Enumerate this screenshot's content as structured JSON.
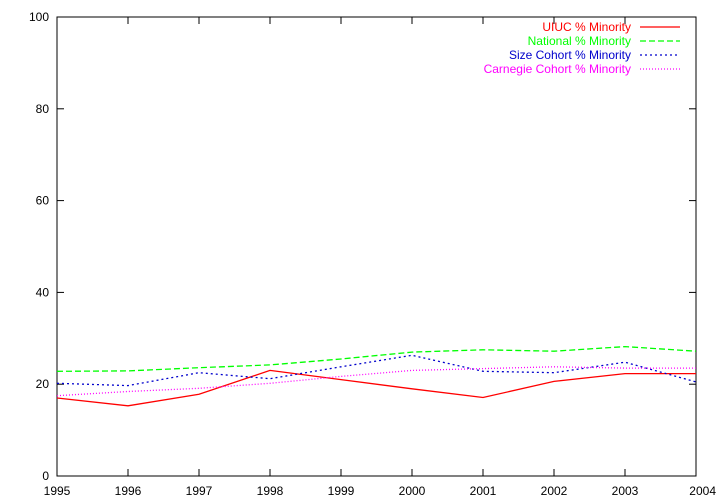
{
  "chart_data": {
    "type": "line",
    "title": "",
    "xlabel": "",
    "ylabel": "",
    "x": [
      1995,
      1996,
      1997,
      1998,
      1999,
      2000,
      2001,
      2002,
      2003,
      2004
    ],
    "xlim": [
      1995,
      2004
    ],
    "ylim": [
      0,
      100
    ],
    "yticks": [
      0,
      20,
      40,
      60,
      80,
      100
    ],
    "grid": false,
    "legend_position": "top-right",
    "series": [
      {
        "name": "UIUC % Minority",
        "color": "#ff0000",
        "dash": "solid",
        "values": [
          17.0,
          15.3,
          17.8,
          23.0,
          21.0,
          19.0,
          17.1,
          20.6,
          22.3,
          22.3
        ]
      },
      {
        "name": "National % Minority",
        "color": "#00ff00",
        "dash": "dashed",
        "values": [
          22.8,
          22.9,
          23.6,
          24.2,
          25.5,
          27.0,
          27.5,
          27.2,
          28.2,
          27.2
        ]
      },
      {
        "name": "Size Cohort % Minority",
        "color": "#0000cc",
        "dash": "dotted",
        "values": [
          20.2,
          19.7,
          22.5,
          21.2,
          23.8,
          26.3,
          22.8,
          22.5,
          24.8,
          20.5
        ]
      },
      {
        "name": "Carnegie Cohort % Minority",
        "color": "#ff00ff",
        "dash": "finedotted",
        "values": [
          17.5,
          18.4,
          19.1,
          20.2,
          21.7,
          23.0,
          23.4,
          23.8,
          23.5,
          23.5
        ]
      }
    ]
  }
}
